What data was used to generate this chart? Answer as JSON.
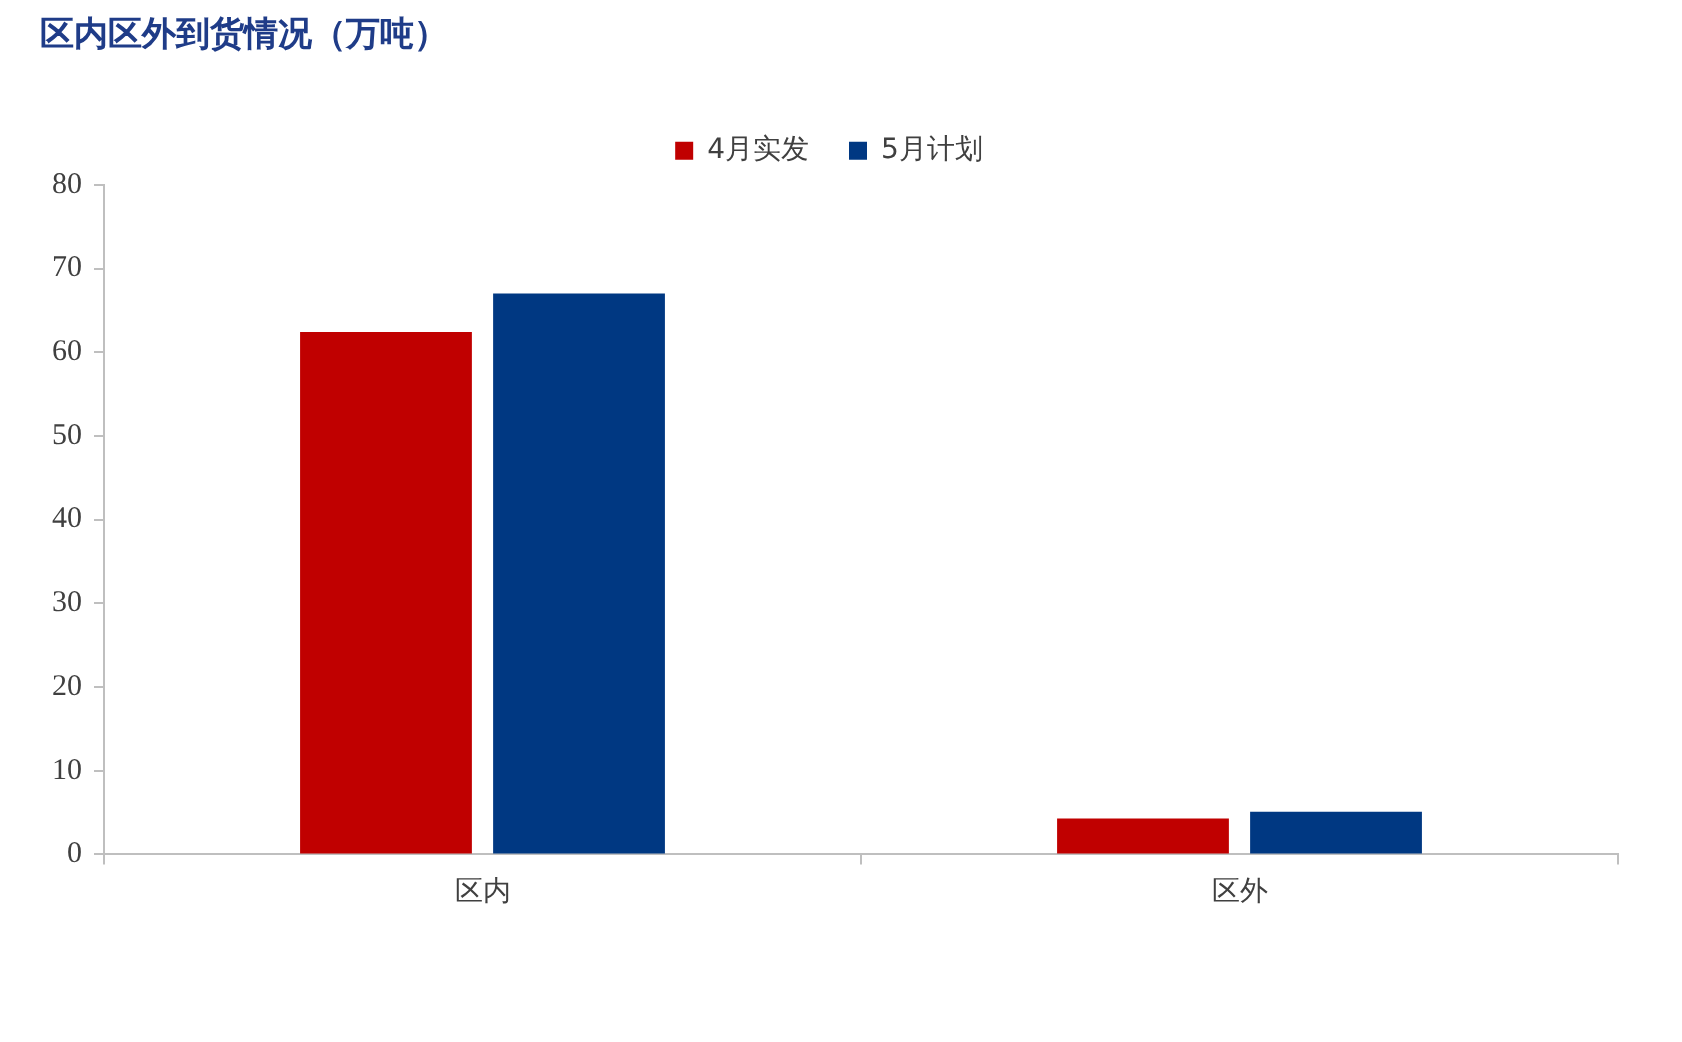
{
  "chart_data": {
    "type": "bar",
    "title": "区内区外到货情况（万吨）",
    "categories": [
      "区内",
      "区外"
    ],
    "series": [
      {
        "name": "4月实发",
        "color": "#c00000",
        "values": [
          62.4,
          4.3
        ]
      },
      {
        "name": "5月计划",
        "color": "#003882",
        "values": [
          67.0,
          5.1
        ]
      }
    ],
    "ylim": [
      0,
      80
    ],
    "yticks": [
      0,
      10,
      20,
      30,
      40,
      50,
      60,
      70,
      80
    ],
    "grid": false,
    "legend": "top"
  }
}
